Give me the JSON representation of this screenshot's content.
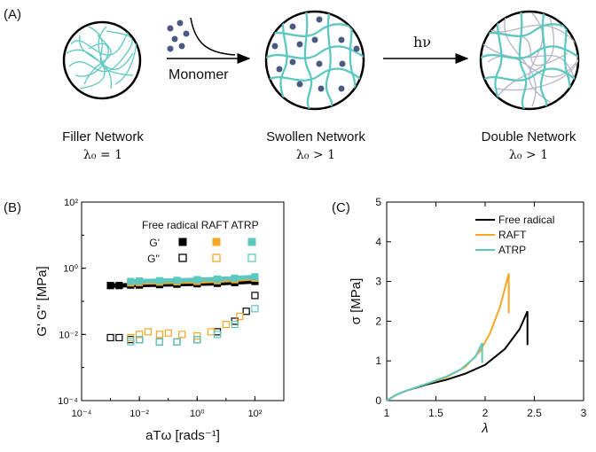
{
  "panel_a": {
    "label": "(A)",
    "arrow1_label": "Monomer",
    "arrow2_label": "hν",
    "stages": [
      {
        "name": "Filler Network",
        "lambda": "λ₀ = 1"
      },
      {
        "name": "Swollen Network",
        "lambda": "λ₀ > 1"
      },
      {
        "name": "Double Network",
        "lambda": "λ₀ > 1"
      }
    ]
  },
  "panel_b": {
    "label": "(B)"
  },
  "panel_c": {
    "label": "(C)"
  },
  "colors": {
    "black": "#000000",
    "orange": "#f5a623",
    "teal": "#5ec8c0",
    "dot": "#4a5a80",
    "mesh": "#5ec8c0"
  },
  "chart_data": [
    {
      "type": "scatter",
      "title": "",
      "xlabel": "aTω [rads⁻¹]",
      "ylabel": "G' G'' [MPa]",
      "xscale": "log",
      "yscale": "log",
      "xlim": [
        0.0001,
        1000
      ],
      "ylim": [
        0.0001,
        100
      ],
      "x_tick_labels": [
        "10⁻⁴",
        "10⁻²",
        "10⁰",
        "10²"
      ],
      "y_tick_labels": [
        "10⁻⁴",
        "10⁻²",
        "10⁰",
        "10²"
      ],
      "legend": {
        "columns": [
          "Free radical",
          "RAFT",
          "ATRP"
        ],
        "rows": [
          "G'",
          "G''"
        ]
      },
      "series": [
        {
          "name": "Free radical G'",
          "color": "#000000",
          "marker": "filled-square",
          "x": [
            0.001,
            0.002,
            0.005,
            0.01,
            0.05,
            0.2,
            1,
            5,
            20,
            100
          ],
          "y": [
            0.3,
            0.3,
            0.31,
            0.31,
            0.32,
            0.33,
            0.34,
            0.35,
            0.37,
            0.4
          ]
        },
        {
          "name": "RAFT G'",
          "color": "#f5a623",
          "marker": "filled-square",
          "x": [
            0.005,
            0.01,
            0.05,
            0.2,
            1,
            5,
            20,
            100
          ],
          "y": [
            0.36,
            0.37,
            0.38,
            0.39,
            0.4,
            0.42,
            0.45,
            0.5
          ]
        },
        {
          "name": "ATRP G'",
          "color": "#5ec8c0",
          "marker": "filled-square",
          "x": [
            0.005,
            0.01,
            0.05,
            0.2,
            1,
            5,
            20,
            100
          ],
          "y": [
            0.4,
            0.41,
            0.42,
            0.43,
            0.45,
            0.47,
            0.5,
            0.55
          ]
        },
        {
          "name": "Free radical G''",
          "color": "#000000",
          "marker": "open-square",
          "x": [
            0.001,
            0.002,
            0.005,
            0.01,
            0.05,
            0.2,
            1,
            5,
            20,
            50,
            100
          ],
          "y": [
            0.008,
            0.008,
            0.007,
            0.007,
            0.006,
            0.006,
            0.007,
            0.012,
            0.025,
            0.05,
            0.15
          ]
        },
        {
          "name": "RAFT G''",
          "color": "#f5a623",
          "marker": "open-square",
          "x": [
            0.005,
            0.01,
            0.02,
            0.05,
            0.1,
            0.3,
            1,
            3,
            10,
            30
          ],
          "y": [
            0.008,
            0.01,
            0.012,
            0.01,
            0.011,
            0.01,
            0.009,
            0.012,
            0.02,
            0.035
          ]
        },
        {
          "name": "ATRP G''",
          "color": "#5ec8c0",
          "marker": "open-square",
          "x": [
            0.005,
            0.01,
            0.05,
            0.2,
            1,
            5,
            20,
            100
          ],
          "y": [
            0.006,
            0.007,
            0.006,
            0.006,
            0.007,
            0.01,
            0.02,
            0.06
          ]
        }
      ]
    },
    {
      "type": "line",
      "title": "",
      "xlabel": "λ",
      "ylabel": "σ [MPa]",
      "xlim": [
        1,
        3
      ],
      "ylim": [
        0,
        5
      ],
      "x_tick_labels": [
        "1",
        "1.5",
        "2",
        "2.5",
        "3"
      ],
      "y_tick_labels": [
        "0",
        "1",
        "2",
        "3",
        "4",
        "5"
      ],
      "legend_position": "top-right",
      "series": [
        {
          "name": "Free radical",
          "color": "#000000",
          "x": [
            1.0,
            1.1,
            1.2,
            1.4,
            1.6,
            1.8,
            2.0,
            2.2,
            2.35,
            2.43,
            2.43
          ],
          "y": [
            0.0,
            0.15,
            0.25,
            0.4,
            0.52,
            0.68,
            0.9,
            1.3,
            1.8,
            2.25,
            1.4
          ]
        },
        {
          "name": "RAFT",
          "color": "#f5a623",
          "x": [
            1.0,
            1.1,
            1.2,
            1.4,
            1.6,
            1.8,
            1.95,
            2.05,
            2.15,
            2.24,
            2.24
          ],
          "y": [
            0.0,
            0.15,
            0.25,
            0.42,
            0.58,
            0.85,
            1.25,
            1.7,
            2.35,
            3.2,
            2.2
          ]
        },
        {
          "name": "ATRP",
          "color": "#5ec8c0",
          "x": [
            1.0,
            1.1,
            1.2,
            1.4,
            1.6,
            1.75,
            1.9,
            1.97,
            1.97
          ],
          "y": [
            0.0,
            0.15,
            0.25,
            0.42,
            0.6,
            0.78,
            1.1,
            1.45,
            0.95
          ]
        }
      ]
    }
  ]
}
